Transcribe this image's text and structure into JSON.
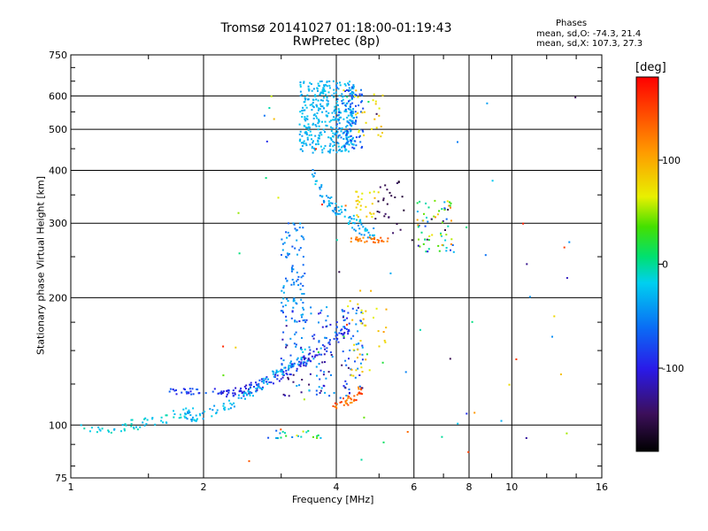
{
  "header": {
    "title": "Tromsø 20141027 01:18:00-01:19:43",
    "subtitle": "RwPretec (8p)"
  },
  "phase_info": {
    "title": "Phases",
    "line1": "mean, sd,O: -74.3, 21.4",
    "line2": "mean, sd,X: 107.3, 27.3"
  },
  "colorbar": {
    "unit": "[deg]",
    "ticks": [
      "100",
      "0",
      "-100"
    ],
    "tick_values": [
      100,
      0,
      -100
    ],
    "range": [
      -180,
      180
    ]
  },
  "chart_data": {
    "type": "scatter",
    "xlabel": "Frequency [MHz]",
    "ylabel": "Stationary phase Virtual Height [km]",
    "x_scale": "log",
    "y_scale": "log",
    "xlim": [
      1,
      16
    ],
    "ylim": [
      75,
      750
    ],
    "x_ticks": [
      1,
      2,
      4,
      6,
      8,
      10,
      16
    ],
    "x_tick_labels": [
      "1",
      "2",
      "4",
      "6",
      "8",
      "10",
      "16"
    ],
    "y_ticks": [
      75,
      100,
      200,
      300,
      400,
      500,
      600,
      750
    ],
    "y_tick_labels": [
      "75",
      "100",
      "200",
      "300",
      "400",
      "500",
      "600",
      "750"
    ],
    "grid": true,
    "color_encodes": "phase (deg)",
    "clusters": [
      {
        "name": "E/F1 low trace",
        "x_range": [
          1.05,
          1.9
        ],
        "y_range": [
          97,
          103
        ],
        "phase_range": [
          -60,
          -20
        ],
        "count": 60,
        "shape": "rise",
        "y_end": 108
      },
      {
        "name": "F1 upper band",
        "x_range": [
          1.65,
          2.3
        ],
        "y_range": [
          118,
          122
        ],
        "phase_range": [
          -120,
          -90
        ],
        "count": 35,
        "shape": "flat"
      },
      {
        "name": "F1 trace blue",
        "x_range": [
          2.2,
          4.3
        ],
        "y_range": [
          118,
          170
        ],
        "phase_range": [
          -130,
          -95
        ],
        "count": 140,
        "shape": "rise"
      },
      {
        "name": "F1 trace cyan",
        "x_range": [
          1.8,
          3.4
        ],
        "y_range": [
          104,
          150
        ],
        "phase_range": [
          -75,
          -40
        ],
        "count": 110,
        "shape": "rise"
      },
      {
        "name": "F1 trace red",
        "x_range": [
          3.9,
          4.6
        ],
        "y_range": [
          110,
          122
        ],
        "phase_range": [
          120,
          165
        ],
        "count": 40,
        "shape": "rise"
      },
      {
        "name": "F1 dense cloud",
        "x_range": [
          3.0,
          4.6
        ],
        "y_range": [
          115,
          190
        ],
        "phase_range": [
          -150,
          -60
        ],
        "count": 170,
        "shape": "box"
      },
      {
        "name": "F1 cusp column",
        "x_range": [
          3.0,
          3.4
        ],
        "y_range": [
          175,
          300
        ],
        "phase_range": [
          -100,
          -55
        ],
        "count": 90,
        "shape": "box"
      },
      {
        "name": "F2 mid warm",
        "x_range": [
          4.3,
          5.2
        ],
        "y_range": [
          130,
          210
        ],
        "phase_range": [
          80,
          120
        ],
        "count": 35,
        "shape": "box"
      },
      {
        "name": "F2 trace cyan",
        "x_range": [
          3.5,
          4.9
        ],
        "y_range": [
          280,
          420
        ],
        "phase_range": [
          -80,
          -40
        ],
        "count": 90,
        "shape": "fall"
      },
      {
        "name": "F2 yellow patch",
        "x_range": [
          4.4,
          5.0
        ],
        "y_range": [
          310,
          360
        ],
        "phase_range": [
          80,
          110
        ],
        "count": 25,
        "shape": "box"
      },
      {
        "name": "F2 red line",
        "x_range": [
          4.3,
          5.3
        ],
        "y_range": [
          270,
          278
        ],
        "phase_range": [
          120,
          150
        ],
        "count": 30,
        "shape": "flat"
      },
      {
        "name": "F2 violet patch",
        "x_range": [
          4.9,
          5.7
        ],
        "y_range": [
          280,
          380
        ],
        "phase_range": [
          -165,
          -145
        ],
        "count": 25,
        "shape": "box"
      },
      {
        "name": "Multi-hop cloud",
        "x_range": [
          3.3,
          4.4
        ],
        "y_range": [
          440,
          650
        ],
        "phase_range": [
          -70,
          -45
        ],
        "count": 380,
        "shape": "box"
      },
      {
        "name": "Multi-hop blue",
        "x_range": [
          4.0,
          4.6
        ],
        "y_range": [
          450,
          640
        ],
        "phase_range": [
          -110,
          -80
        ],
        "count": 80,
        "shape": "box"
      },
      {
        "name": "Multi-hop yellow",
        "x_range": [
          4.4,
          5.1
        ],
        "y_range": [
          480,
          620
        ],
        "phase_range": [
          80,
          110
        ],
        "count": 25,
        "shape": "box"
      },
      {
        "name": "Oblique echoes",
        "x_range": [
          6.1,
          7.4
        ],
        "y_range": [
          255,
          340
        ],
        "phase_range": [
          -165,
          150
        ],
        "count": 70,
        "shape": "box"
      },
      {
        "name": "Bottom stray points",
        "x_range": [
          2.8,
          3.7
        ],
        "y_range": [
          93,
          97
        ],
        "phase_range": [
          -120,
          110
        ],
        "count": 20,
        "shape": "box"
      },
      {
        "name": "Sparse noise",
        "x_range": [
          2.2,
          14.0
        ],
        "y_range": [
          82,
          620
        ],
        "phase_range": [
          -170,
          170
        ],
        "count": 70,
        "shape": "box"
      }
    ]
  }
}
